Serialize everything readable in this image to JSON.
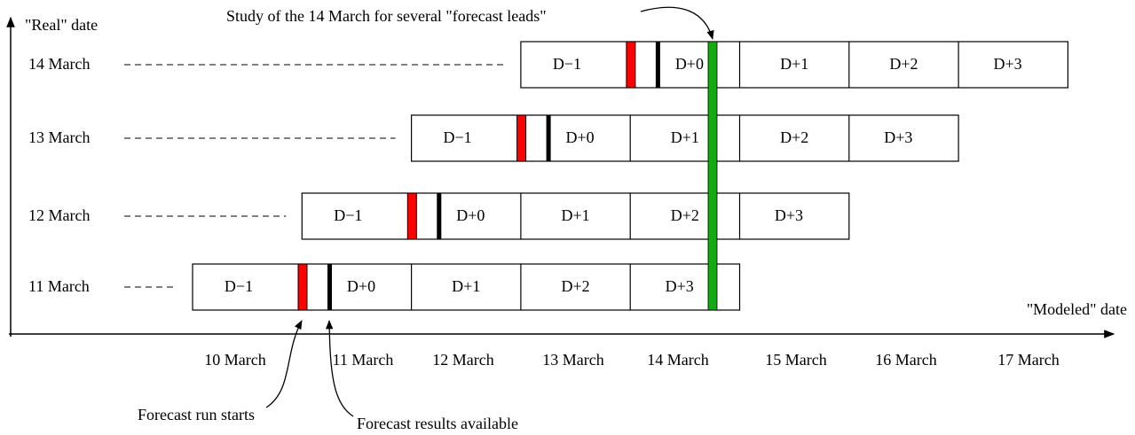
{
  "title": "Study of the 14 March for several \"forecast leads\"",
  "axes": {
    "y_label": "\"Real\" date",
    "x_label": "\"Modeled\" date"
  },
  "rows": [
    {
      "label": "14 March",
      "cells": [
        "D−1",
        "D+0",
        "D+1",
        "D+2",
        "D+3"
      ]
    },
    {
      "label": "13 March",
      "cells": [
        "D−1",
        "D+0",
        "D+1",
        "D+2",
        "D+3"
      ]
    },
    {
      "label": "12 March",
      "cells": [
        "D−1",
        "D+0",
        "D+1",
        "D+2",
        "D+3"
      ]
    },
    {
      "label": "11 March",
      "cells": [
        "D−1",
        "D+0",
        "D+1",
        "D+2",
        "D+3"
      ]
    }
  ],
  "modeled_dates": [
    "10 March",
    "11 March",
    "12 March",
    "13 March",
    "14 March",
    "15 March",
    "16 March",
    "17 March"
  ],
  "annotations": {
    "run_start": "Forecast run starts",
    "results": "Forecast results available"
  }
}
